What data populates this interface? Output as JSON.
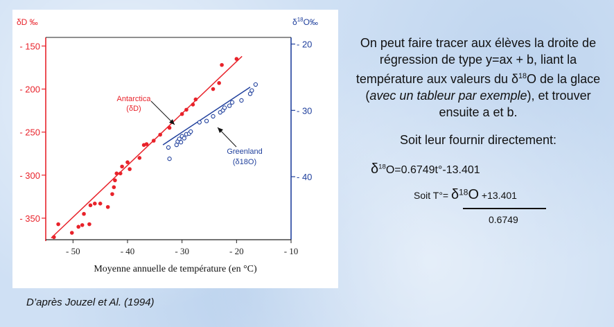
{
  "chart_data": {
    "type": "scatter",
    "xlabel": "Moyenne annuelle de température (en °C)",
    "ylabel_left": "δD ‰",
    "ylabel_right": "δ18O‰",
    "xlim": [
      -55,
      -10
    ],
    "ylim_left": [
      -375,
      -140
    ],
    "ylim_right": [
      -49.5,
      -19
    ],
    "x_ticks": [
      "- 50",
      "- 40",
      "- 30",
      "- 20",
      "- 10"
    ],
    "y_ticks_left": [
      "- 150",
      "- 200",
      "- 250",
      "- 300",
      "- 350"
    ],
    "y_ticks_right": [
      "- 20",
      "- 30",
      "- 40"
    ],
    "series": [
      {
        "name": "Antarctica (δD)",
        "axis": "left",
        "color": "#e8222a",
        "marker": "filled-circle",
        "points": [
          [
            -53.5,
            -372
          ],
          [
            -52.7,
            -357
          ],
          [
            -50.2,
            -367
          ],
          [
            -49,
            -360
          ],
          [
            -48.3,
            -358
          ],
          [
            -48,
            -345
          ],
          [
            -47,
            -357
          ],
          [
            -46.8,
            -335
          ],
          [
            -46,
            -333
          ],
          [
            -45,
            -333
          ],
          [
            -43.6,
            -337
          ],
          [
            -42.8,
            -322
          ],
          [
            -42.5,
            -314
          ],
          [
            -42.3,
            -306
          ],
          [
            -42,
            -298
          ],
          [
            -41.3,
            -298
          ],
          [
            -41,
            -290
          ],
          [
            -40,
            -285
          ],
          [
            -39.6,
            -293
          ],
          [
            -37.8,
            -280
          ],
          [
            -37,
            -265
          ],
          [
            -36.5,
            -264
          ],
          [
            -35.2,
            -260
          ],
          [
            -34,
            -253
          ],
          [
            -32.3,
            -245
          ],
          [
            -30,
            -229
          ],
          [
            -29.2,
            -224
          ],
          [
            -28,
            -218
          ],
          [
            -27.5,
            -212
          ],
          [
            -24.3,
            -200
          ],
          [
            -23.2,
            -193
          ],
          [
            -22.7,
            -172
          ],
          [
            -20,
            -165
          ]
        ],
        "regression": [
          [
            -54,
            -373
          ],
          [
            -19,
            -162
          ]
        ]
      },
      {
        "name": "Greenland (δ18O)",
        "axis": "right",
        "color": "#1f3f9c",
        "marker": "open-circle",
        "points": [
          [
            -32.5,
            -35.6
          ],
          [
            -32.3,
            -37.3
          ],
          [
            -31,
            -35.2
          ],
          [
            -30.8,
            -34.7
          ],
          [
            -30.5,
            -34.3
          ],
          [
            -30.2,
            -34.8
          ],
          [
            -30,
            -33.9
          ],
          [
            -29.6,
            -34.2
          ],
          [
            -29.2,
            -33.6
          ],
          [
            -28.7,
            -33.5
          ],
          [
            -28.4,
            -33.2
          ],
          [
            -26.8,
            -31.8
          ],
          [
            -25.5,
            -31.6
          ],
          [
            -24.3,
            -30.9
          ],
          [
            -23,
            -30.3
          ],
          [
            -22.5,
            -30.0
          ],
          [
            -22.2,
            -29.6
          ],
          [
            -21.3,
            -29.3
          ],
          [
            -20.8,
            -28.8
          ],
          [
            -19.1,
            -28.5
          ],
          [
            -17.5,
            -27.5
          ],
          [
            -17.2,
            -27.0
          ],
          [
            -16.5,
            -26.1
          ]
        ],
        "regression": [
          [
            -33.5,
            -35.2
          ],
          [
            -17.5,
            -26.5
          ]
        ]
      }
    ],
    "annotations": [
      {
        "label_lines": [
          "Antarctica",
          "(δD)"
        ],
        "color": "#e8222a"
      },
      {
        "label_lines": [
          "Greenland",
          "(δ18O)"
        ],
        "color": "#1f3f9c"
      }
    ]
  },
  "text": {
    "para1_a": "On peut faire tracer aux élèves la droite de régression de type y=ax + b, liant la température aux valeurs du δ",
    "para1_sup": "18",
    "para1_b": "O de la glace (",
    "para1_italic1": "avec un tableur par exemple",
    "para1_c": "), et trouver ensuite a et b.",
    "para2": "Soit leur fournir directement:",
    "eq1_delta": "δ",
    "eq1_sup": "18",
    "eq1_rest": "O=0.6749t°-13.401",
    "eq2_prefix": "Soit T°= ",
    "eq2_delta": "δ",
    "eq2_sup": "18",
    "eq2_o": "O",
    "eq2_rest": " +13.401",
    "denominator": "0.6749",
    "source": "D’après Jouzel et Al. (1994)"
  },
  "colors": {
    "background": "#cfe0f4",
    "antarctica": "#e8222a",
    "greenland": "#1f3f9c"
  }
}
